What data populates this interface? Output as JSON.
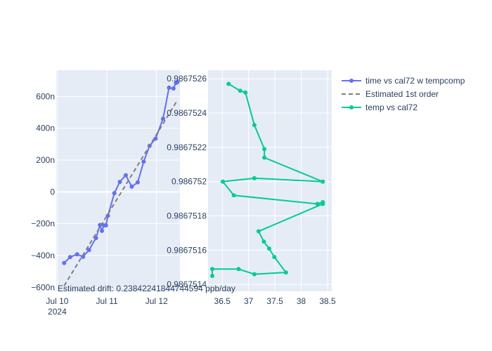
{
  "chart_data": [
    {
      "type": "line",
      "subplot": "left",
      "x_ticks": [
        {
          "value": 0,
          "label": "Jul 10",
          "sublabel": "2024"
        },
        {
          "value": 1,
          "label": "Jul 11",
          "sublabel": ""
        },
        {
          "value": 2,
          "label": "Jul 12",
          "sublabel": ""
        }
      ],
      "xlim": [
        -0.02,
        2.47
      ],
      "ylim": [
        -625,
        765
      ],
      "y_ticks": [
        {
          "value": -600,
          "label": "−600n"
        },
        {
          "value": -400,
          "label": "−400n"
        },
        {
          "value": -200,
          "label": "−200n"
        },
        {
          "value": 0,
          "label": "0"
        },
        {
          "value": 200,
          "label": "200n"
        },
        {
          "value": 400,
          "label": "400n"
        },
        {
          "value": 600,
          "label": "600n"
        }
      ],
      "series": [
        {
          "name": "time vs cal72 w tempcomp",
          "color": "#636efa",
          "mode": "lines+markers",
          "x": [
            0.14,
            0.26,
            0.4,
            0.52,
            0.64,
            0.78,
            0.86,
            0.9,
            0.94,
            0.98,
            1.02,
            1.15,
            1.26,
            1.38,
            1.5,
            1.62,
            1.74,
            1.86,
            1.98,
            2.13,
            2.25,
            2.34,
            2.39,
            2.42
          ],
          "y": [
            -447,
            -410,
            -392,
            -408,
            -365,
            -290,
            -208,
            -245,
            -210,
            -210,
            -150,
            -8,
            63,
            105,
            33,
            60,
            190,
            290,
            335,
            460,
            655,
            650,
            685,
            690
          ]
        },
        {
          "name": "Estimated 1st order",
          "color": "#7f7f7f",
          "mode": "dash",
          "x": [
            0.14,
            2.42
          ],
          "y": [
            -590,
            577
          ]
        }
      ],
      "annotation": "Estimated drift:  0.23842241844744594 ppb/day"
    },
    {
      "type": "line",
      "subplot": "right",
      "xlim": [
        36.23,
        38.58
      ],
      "x_ticks": [
        {
          "value": 36.5,
          "label": "36.5"
        },
        {
          "value": 37,
          "label": "37"
        },
        {
          "value": 37.5,
          "label": "37.5"
        },
        {
          "value": 38,
          "label": "38"
        },
        {
          "value": 38.5,
          "label": "38.5"
        }
      ],
      "ylim": [
        0.98675136,
        0.98675265
      ],
      "y_ticks": [
        {
          "value": 0.9867514,
          "label": "0.9867514"
        },
        {
          "value": 0.9867516,
          "label": "0.9867516"
        },
        {
          "value": 0.9867518,
          "label": "0.9867518"
        },
        {
          "value": 0.986752,
          "label": "0.986752"
        },
        {
          "value": 0.9867522,
          "label": "0.9867522"
        },
        {
          "value": 0.9867524,
          "label": "0.9867524"
        },
        {
          "value": 0.9867526,
          "label": "0.9867526"
        }
      ],
      "series": [
        {
          "name": "temp vs cal72",
          "color": "#00cc96",
          "mode": "lines+markers",
          "x": [
            36.62,
            36.84,
            36.94,
            37.11,
            37.3,
            37.3,
            38.41,
            37.11,
            36.51,
            36.72,
            38.31,
            38.41,
            38.41,
            37.19,
            37.29,
            37.39,
            37.49,
            37.71,
            37.11,
            36.81,
            36.31,
            36.31
          ],
          "y": [
            0.98675257,
            0.98675253,
            0.98675252,
            0.98675233,
            0.98675219,
            0.98675214,
            0.986752,
            0.98675202,
            0.986752,
            0.98675192,
            0.98675187,
            0.98675188,
            0.98675187,
            0.98675171,
            0.98675165,
            0.98675161,
            0.98675156,
            0.98675147,
            0.98675146,
            0.98675149,
            0.98675149,
            0.98675145
          ]
        }
      ]
    }
  ],
  "legend": [
    {
      "label": "time vs cal72 w tempcomp",
      "color": "#636efa",
      "style": "line-marker"
    },
    {
      "label": "Estimated 1st order",
      "color": "#7f7f7f",
      "style": "dash"
    },
    {
      "label": "temp vs cal72",
      "color": "#00cc96",
      "style": "line-marker"
    }
  ],
  "colors": {
    "plot_bg": "#e5ecf6",
    "grid": "#ffffff",
    "text": "#2a3f5f"
  }
}
